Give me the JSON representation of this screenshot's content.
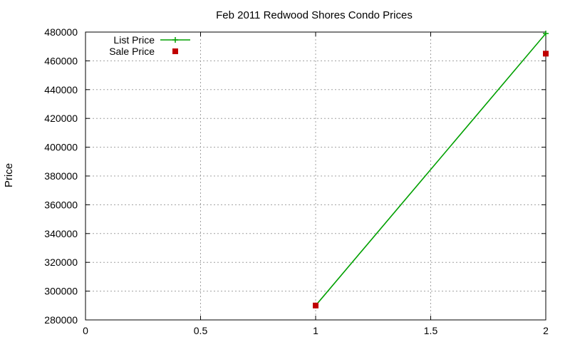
{
  "chart_data": {
    "type": "line",
    "title": "Feb 2011 Redwood Shores Condo Prices",
    "xlabel": "",
    "ylabel": "Price",
    "xlim": [
      0,
      2
    ],
    "ylim": [
      280000,
      480000
    ],
    "x_ticks": [
      0,
      0.5,
      1,
      1.5,
      2
    ],
    "x_tick_labels": [
      "0",
      "0.5",
      "1",
      "1.5",
      "2"
    ],
    "y_ticks": [
      280000,
      300000,
      320000,
      340000,
      360000,
      380000,
      400000,
      420000,
      440000,
      460000,
      480000
    ],
    "y_tick_labels": [
      "280000",
      "300000",
      "320000",
      "340000",
      "360000",
      "380000",
      "400000",
      "420000",
      "440000",
      "460000",
      "480000"
    ],
    "grid": true,
    "legend_position": "top-left",
    "series": [
      {
        "name": "List Price",
        "style": "linespoints",
        "marker": "plus",
        "color": "#00a000",
        "x": [
          1,
          2
        ],
        "y": [
          290000,
          479000
        ]
      },
      {
        "name": "Sale Price",
        "style": "points",
        "marker": "square",
        "color": "#c00000",
        "x": [
          1,
          2
        ],
        "y": [
          290000,
          465000
        ]
      }
    ]
  }
}
